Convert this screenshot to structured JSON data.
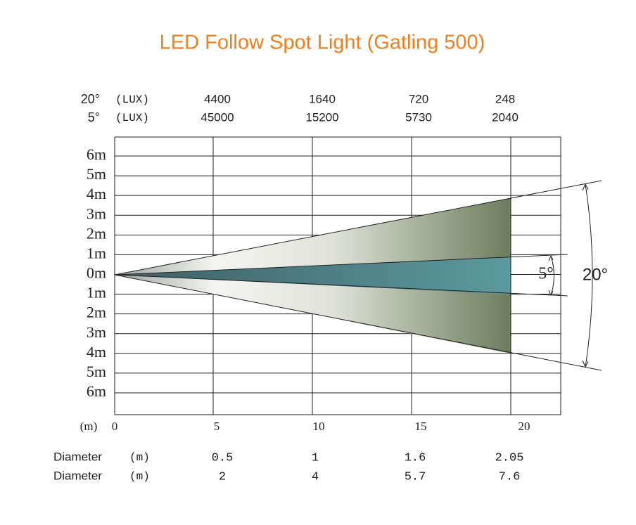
{
  "header": {
    "title": "LED Follow Spot Light  (Gatling 500)"
  },
  "lux_rows": [
    {
      "angle": "20°",
      "unit": "(LUX)",
      "values": [
        "4400",
        "1640",
        "720",
        "248"
      ]
    },
    {
      "angle": "5°",
      "unit": "(LUX)",
      "values": [
        "45000",
        "15200",
        "5730",
        "2040"
      ]
    }
  ],
  "y_labels": [
    "6m",
    "5m",
    "4m",
    "3m",
    "2m",
    "1m",
    "0m",
    "1m",
    "2m",
    "3m",
    "4m",
    "5m",
    "6m"
  ],
  "x_unit": "(m)",
  "x_labels": [
    "0",
    "5",
    "10",
    "15",
    "20"
  ],
  "beam_angles": {
    "narrow": "5°",
    "wide": "20°"
  },
  "diameter_rows": [
    {
      "label": "Diameter",
      "unit": "(m)",
      "values": [
        "0.5",
        "1",
        "1.6",
        "2.05"
      ]
    },
    {
      "label": "Diameter",
      "unit": "(m)",
      "values": [
        "2",
        "4",
        "5.7",
        "7.6"
      ]
    }
  ]
}
